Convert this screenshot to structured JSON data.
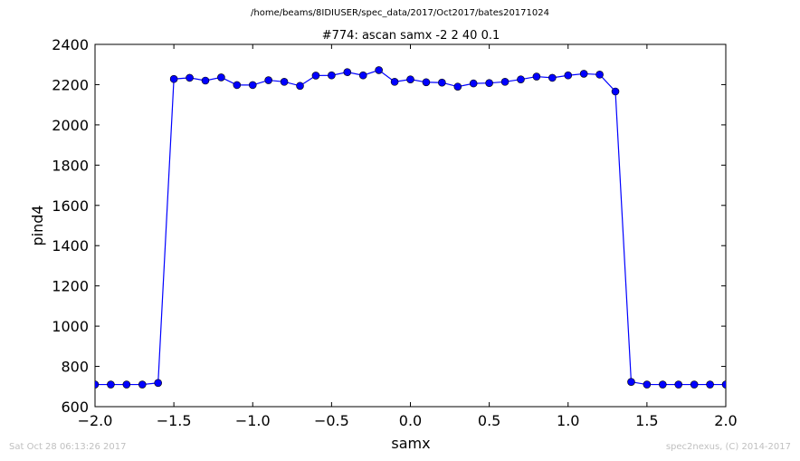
{
  "header": {
    "path": "/home/beams/8IDIUSER/spec_data/2017/Oct2017/bates20171024"
  },
  "footer": {
    "timestamp": "Sat Oct 28 06:13:26 2017",
    "credit": "spec2nexus, (C) 2014-2017"
  },
  "chart_data": {
    "type": "line",
    "title": "#774: ascan  samx -2 2  40 0.1",
    "xlabel": "samx",
    "ylabel": "pind4",
    "xlim": [
      -2.0,
      2.0
    ],
    "ylim": [
      600,
      2400
    ],
    "xticks": [
      -2.0,
      -1.5,
      -1.0,
      -0.5,
      0.0,
      0.5,
      1.0,
      1.5,
      2.0
    ],
    "xtick_labels": [
      "−2.0",
      "−1.5",
      "−1.0",
      "−0.5",
      "0.0",
      "0.5",
      "1.0",
      "1.5",
      "2.0"
    ],
    "yticks": [
      600,
      800,
      1000,
      1200,
      1400,
      1600,
      1800,
      2000,
      2200,
      2400
    ],
    "ytick_labels": [
      "600",
      "800",
      "1000",
      "1200",
      "1400",
      "1600",
      "1800",
      "2000",
      "2200",
      "2400"
    ],
    "grid": false,
    "line_color": "#0000ff",
    "marker": "circle",
    "series": [
      {
        "x": [
          -2.0,
          -1.9,
          -1.8,
          -1.7,
          -1.6,
          -1.5,
          -1.4,
          -1.3,
          -1.2,
          -1.1,
          -1.0,
          -0.9,
          -0.8,
          -0.7,
          -0.6,
          -0.5,
          -0.4,
          -0.3,
          -0.2,
          -0.1,
          0.0,
          0.1,
          0.2,
          0.3,
          0.4,
          0.5,
          0.6,
          0.7,
          0.8,
          0.9,
          1.0,
          1.1,
          1.2,
          1.3,
          1.4,
          1.5,
          1.6,
          1.7,
          1.8,
          1.9,
          2.0
        ],
        "y": [
          710,
          710,
          710,
          710,
          718,
          2228,
          2234,
          2220,
          2236,
          2198,
          2198,
          2222,
          2214,
          2194,
          2245,
          2246,
          2262,
          2246,
          2272,
          2214,
          2226,
          2212,
          2210,
          2190,
          2206,
          2208,
          2214,
          2226,
          2240,
          2234,
          2246,
          2254,
          2250,
          2166,
          723,
          710,
          710,
          710,
          710,
          710,
          710
        ]
      }
    ]
  }
}
